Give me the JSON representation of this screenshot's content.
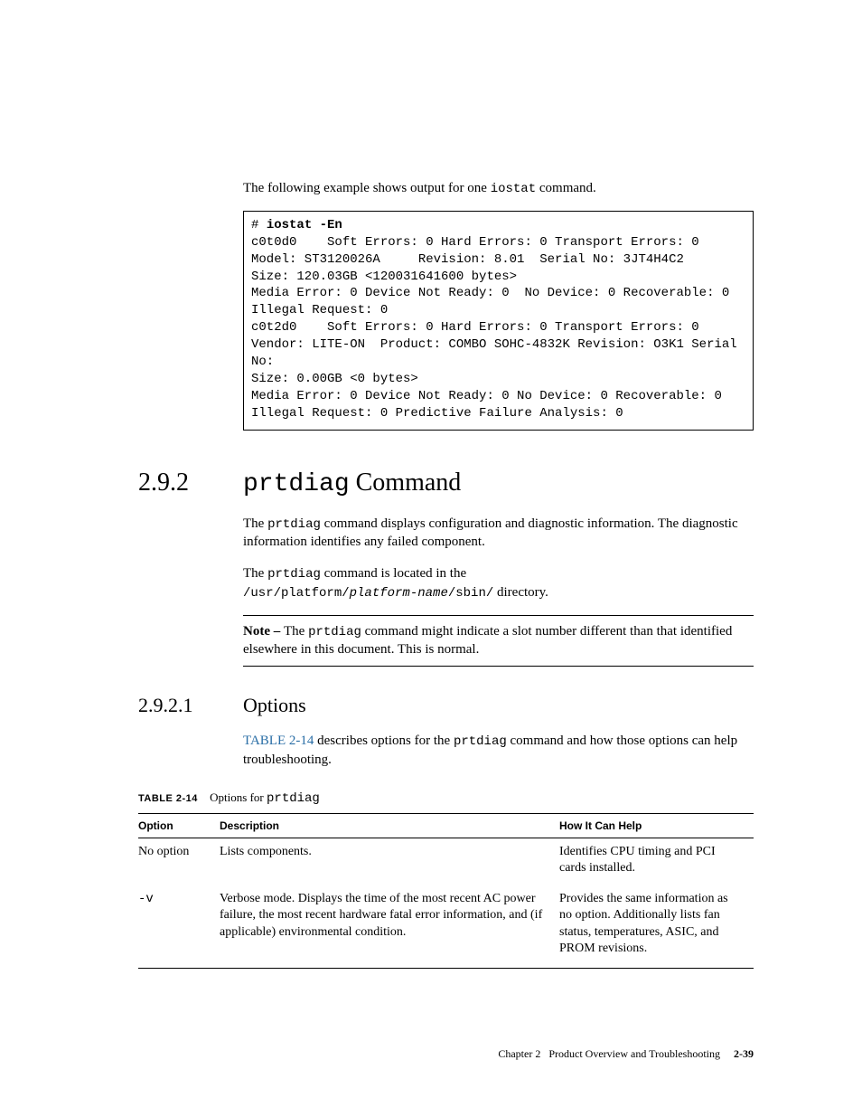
{
  "intro": {
    "before": "The following example shows output for one ",
    "cmd": "iostat",
    "after": " command."
  },
  "code": {
    "prompt": "# ",
    "command": "iostat -En",
    "lines": [
      "c0t0d0    Soft Errors: 0 Hard Errors: 0 Transport Errors: 0",
      "Model: ST3120026A     Revision: 8.01  Serial No: 3JT4H4C2",
      "Size: 120.03GB <120031641600 bytes>",
      "Media Error: 0 Device Not Ready: 0  No Device: 0 Recoverable: 0",
      "Illegal Request: 0",
      "c0t2d0    Soft Errors: 0 Hard Errors: 0 Transport Errors: 0",
      "Vendor: LITE-ON  Product: COMBO SOHC-4832K Revision: O3K1 Serial",
      "No:",
      "Size: 0.00GB <0 bytes>",
      "Media Error: 0 Device Not Ready: 0 No Device: 0 Recoverable: 0",
      "Illegal Request: 0 Predictive Failure Analysis: 0"
    ]
  },
  "section": {
    "num": "2.9.2",
    "title_mono": "prtdiag",
    "title_rest": " Command",
    "p1_a": "The ",
    "p1_cmd": "prtdiag",
    "p1_b": " command displays configuration and diagnostic information. The diagnostic information identifies any failed component.",
    "p2_a": "The ",
    "p2_cmd": "prtdiag",
    "p2_b": " command is located in the",
    "p2_path": "/usr/platform/",
    "p2_var": "platform-name",
    "p2_path2": "/sbin/",
    "p2_c": " directory.",
    "note_label": "Note – ",
    "note_a": "The ",
    "note_cmd": "prtdiag",
    "note_b": " command might indicate a slot number different than that identified elsewhere in this document. This is normal."
  },
  "subsection": {
    "num": "2.9.2.1",
    "title": "Options",
    "link": "TABLE 2-14",
    "p_a": " describes options for the ",
    "p_cmd": "prtdiag",
    "p_b": " command and how those options can help troubleshooting."
  },
  "table": {
    "caption_label": "TABLE 2-14",
    "caption_a": "Options for ",
    "caption_cmd": "prtdiag",
    "headers": {
      "c1": "Option",
      "c2": "Description",
      "c3": "How It Can Help"
    },
    "rows": [
      {
        "option": "No option",
        "option_mono": false,
        "desc": "Lists components.",
        "help": "Identifies CPU timing and PCI cards installed."
      },
      {
        "option": "-v",
        "option_mono": true,
        "desc": "Verbose mode. Displays the time of the most recent AC power failure, the most recent hardware fatal error information, and (if applicable) environmental condition.",
        "help": "Provides the same information as no option. Additionally lists fan status, temperatures, ASIC, and PROM revisions."
      }
    ]
  },
  "footer": {
    "chapter": "Chapter 2",
    "title": "Product Overview and Troubleshooting",
    "page": "2-39"
  }
}
